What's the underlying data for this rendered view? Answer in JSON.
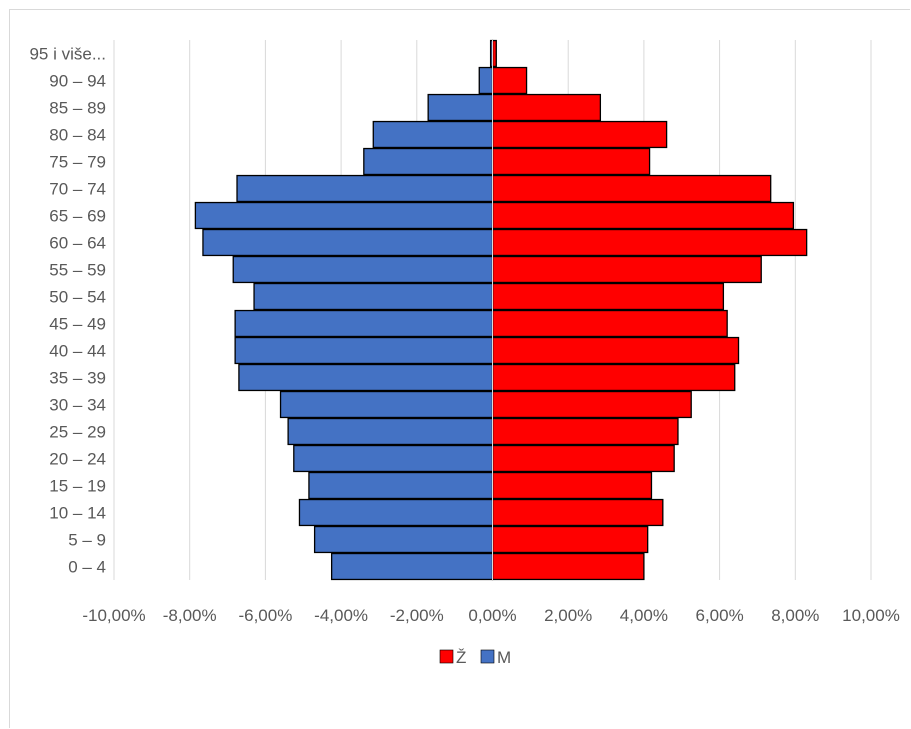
{
  "chart_data": {
    "type": "bar",
    "orientation": "horizontal",
    "categories": [
      "0 – 4",
      "5 – 9",
      "10 – 14",
      "15 – 19",
      "20 – 24",
      "25 – 29",
      "30 – 34",
      "35 – 39",
      "40 – 44",
      "45 – 49",
      "50 – 54",
      "55 – 59",
      "60 – 64",
      "65 – 69",
      "70 – 74",
      "75 – 79",
      "80 – 84",
      "85 – 89",
      "90 – 94",
      "95 i više..."
    ],
    "series": [
      {
        "name": "Ž",
        "color": "#ff0000",
        "values": [
          4.0,
          4.1,
          4.5,
          4.2,
          4.8,
          4.9,
          5.25,
          6.4,
          6.5,
          6.2,
          6.1,
          7.1,
          8.3,
          7.95,
          7.35,
          4.15,
          4.6,
          2.85,
          0.9,
          0.1
        ]
      },
      {
        "name": "M",
        "color": "#4472c4",
        "values": [
          -4.25,
          -4.7,
          -5.1,
          -4.85,
          -5.25,
          -5.4,
          -5.6,
          -6.7,
          -6.8,
          -6.8,
          -6.3,
          -6.85,
          -7.65,
          -7.85,
          -6.75,
          -3.4,
          -3.15,
          -1.7,
          -0.35,
          -0.05
        ]
      }
    ],
    "xlim": [
      -10,
      10
    ],
    "xticks": [
      "-10,00%",
      "-8,00%",
      "-6,00%",
      "-4,00%",
      "-2,00%",
      "0,00%",
      "2,00%",
      "4,00%",
      "6,00%",
      "8,00%",
      "10,00%"
    ],
    "title": "",
    "xlabel": "",
    "ylabel": "",
    "grid": "vertical",
    "legend_position": "bottom"
  }
}
